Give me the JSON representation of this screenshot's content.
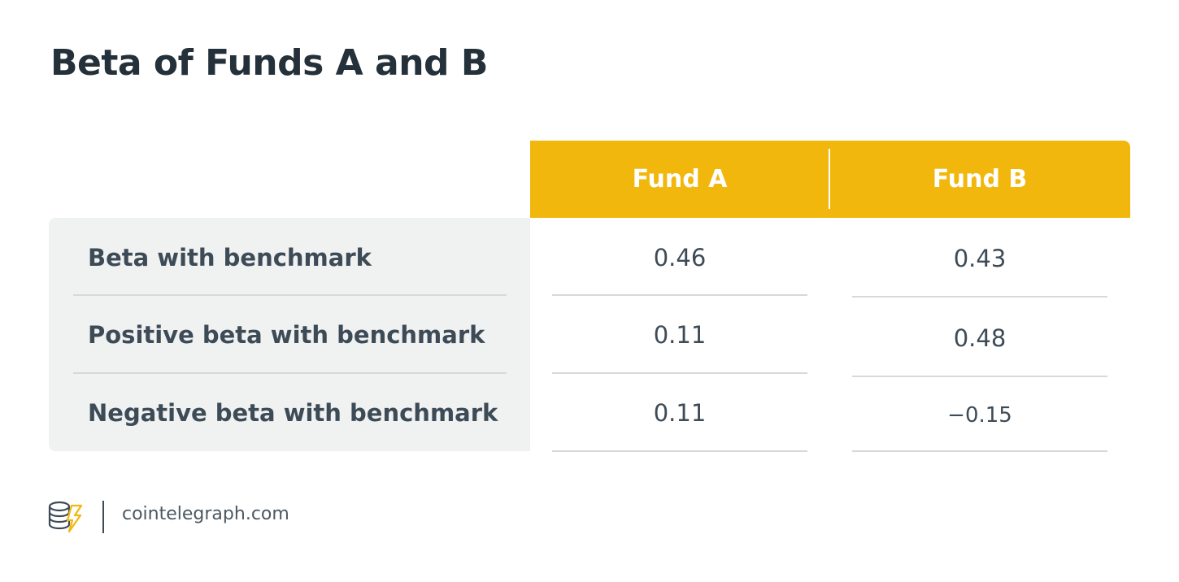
{
  "header": {
    "title": "Beta of Funds A and B"
  },
  "table": {
    "columns": [
      "Fund A",
      "Fund B"
    ],
    "rows": [
      {
        "label": "Beta with benchmark",
        "cells": [
          "0.46",
          "0.43"
        ]
      },
      {
        "label": "Positive beta with benchmark",
        "cells": [
          "0.11",
          "0.48"
        ]
      },
      {
        "label": "Negative beta with benchmark",
        "cells": [
          "0.11",
          "−0.15"
        ]
      }
    ]
  },
  "footer": {
    "source": "cointelegraph.com"
  }
}
